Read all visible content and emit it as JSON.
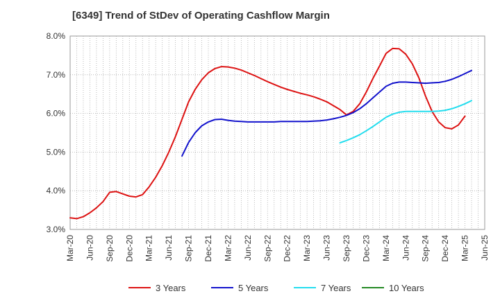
{
  "chart_data": {
    "type": "line",
    "title": "[6349]  Trend of StDev of Operating Cashflow Margin",
    "xlabel": "",
    "ylabel": "",
    "ylim": [
      3.0,
      8.0
    ],
    "y_ticks": [
      "3.0%",
      "4.0%",
      "5.0%",
      "6.0%",
      "7.0%",
      "8.0%"
    ],
    "x_ticks": [
      "Mar-20",
      "Jun-20",
      "Sep-20",
      "Dec-20",
      "Mar-21",
      "Jun-21",
      "Sep-21",
      "Dec-21",
      "Mar-22",
      "Jun-22",
      "Sep-22",
      "Dec-22",
      "Mar-23",
      "Jun-23",
      "Sep-23",
      "Dec-23",
      "Mar-24",
      "Jun-24",
      "Sep-24",
      "Dec-24",
      "Mar-25",
      "Jun-25"
    ],
    "grid": true,
    "legend_position": "bottom",
    "series": [
      {
        "name": "3 Years",
        "color": "#dd1111",
        "points": [
          [
            "Mar-20",
            3.3
          ],
          [
            "Apr-20",
            3.28
          ],
          [
            "May-20",
            3.33
          ],
          [
            "Jun-20",
            3.43
          ],
          [
            "Jul-20",
            3.56
          ],
          [
            "Aug-20",
            3.72
          ],
          [
            "Sep-20",
            3.96
          ],
          [
            "Oct-20",
            3.98
          ],
          [
            "Nov-20",
            3.92
          ],
          [
            "Dec-20",
            3.86
          ],
          [
            "Jan-21",
            3.84
          ],
          [
            "Feb-21",
            3.9
          ],
          [
            "Mar-21",
            4.1
          ],
          [
            "Apr-21",
            4.35
          ],
          [
            "May-21",
            4.65
          ],
          [
            "Jun-21",
            5.0
          ],
          [
            "Jul-21",
            5.4
          ],
          [
            "Aug-21",
            5.85
          ],
          [
            "Sep-21",
            6.3
          ],
          [
            "Oct-21",
            6.62
          ],
          [
            "Nov-21",
            6.87
          ],
          [
            "Dec-21",
            7.05
          ],
          [
            "Jan-22",
            7.16
          ],
          [
            "Feb-22",
            7.21
          ],
          [
            "Mar-22",
            7.2
          ],
          [
            "Apr-22",
            7.17
          ],
          [
            "May-22",
            7.12
          ],
          [
            "Jun-22",
            7.05
          ],
          [
            "Jul-22",
            6.98
          ],
          [
            "Aug-22",
            6.9
          ],
          [
            "Sep-22",
            6.82
          ],
          [
            "Oct-22",
            6.75
          ],
          [
            "Nov-22",
            6.68
          ],
          [
            "Dec-22",
            6.62
          ],
          [
            "Jan-23",
            6.57
          ],
          [
            "Feb-23",
            6.52
          ],
          [
            "Mar-23",
            6.48
          ],
          [
            "Apr-23",
            6.43
          ],
          [
            "May-23",
            6.37
          ],
          [
            "Jun-23",
            6.3
          ],
          [
            "Jul-23",
            6.2
          ],
          [
            "Aug-23",
            6.1
          ],
          [
            "Sep-23",
            5.96
          ],
          [
            "Oct-23",
            6.05
          ],
          [
            "Nov-23",
            6.25
          ],
          [
            "Dec-23",
            6.55
          ],
          [
            "Jan-24",
            6.9
          ],
          [
            "Feb-24",
            7.22
          ],
          [
            "Mar-24",
            7.55
          ],
          [
            "Apr-24",
            7.68
          ],
          [
            "May-24",
            7.67
          ],
          [
            "Jun-24",
            7.53
          ],
          [
            "Jul-24",
            7.28
          ],
          [
            "Aug-24",
            6.92
          ],
          [
            "Sep-24",
            6.45
          ],
          [
            "Oct-24",
            6.05
          ],
          [
            "Nov-24",
            5.78
          ],
          [
            "Dec-24",
            5.63
          ],
          [
            "Jan-25",
            5.6
          ],
          [
            "Feb-25",
            5.7
          ],
          [
            "Mar-25",
            5.93
          ]
        ]
      },
      {
        "name": "5 Years",
        "color": "#1111cc",
        "points": [
          [
            "Aug-21",
            4.9
          ],
          [
            "Sep-21",
            5.25
          ],
          [
            "Oct-21",
            5.5
          ],
          [
            "Nov-21",
            5.68
          ],
          [
            "Dec-21",
            5.78
          ],
          [
            "Jan-22",
            5.84
          ],
          [
            "Feb-22",
            5.85
          ],
          [
            "Mar-22",
            5.82
          ],
          [
            "Apr-22",
            5.8
          ],
          [
            "May-22",
            5.79
          ],
          [
            "Jun-22",
            5.78
          ],
          [
            "Jul-22",
            5.78
          ],
          [
            "Aug-22",
            5.78
          ],
          [
            "Sep-22",
            5.78
          ],
          [
            "Oct-22",
            5.78
          ],
          [
            "Nov-22",
            5.79
          ],
          [
            "Dec-22",
            5.79
          ],
          [
            "Jan-23",
            5.79
          ],
          [
            "Feb-23",
            5.79
          ],
          [
            "Mar-23",
            5.79
          ],
          [
            "Apr-23",
            5.8
          ],
          [
            "May-23",
            5.81
          ],
          [
            "Jun-23",
            5.83
          ],
          [
            "Jul-23",
            5.86
          ],
          [
            "Aug-23",
            5.9
          ],
          [
            "Sep-23",
            5.95
          ],
          [
            "Oct-23",
            6.02
          ],
          [
            "Nov-23",
            6.12
          ],
          [
            "Dec-23",
            6.25
          ],
          [
            "Jan-24",
            6.4
          ],
          [
            "Feb-24",
            6.55
          ],
          [
            "Mar-24",
            6.7
          ],
          [
            "Apr-24",
            6.78
          ],
          [
            "May-24",
            6.81
          ],
          [
            "Jun-24",
            6.81
          ],
          [
            "Jul-24",
            6.8
          ],
          [
            "Aug-24",
            6.79
          ],
          [
            "Sep-24",
            6.78
          ],
          [
            "Oct-24",
            6.79
          ],
          [
            "Nov-24",
            6.8
          ],
          [
            "Dec-24",
            6.83
          ],
          [
            "Jan-25",
            6.88
          ],
          [
            "Feb-25",
            6.95
          ],
          [
            "Mar-25",
            7.03
          ],
          [
            "Apr-25",
            7.11
          ]
        ]
      },
      {
        "name": "7 Years",
        "color": "#22ddee",
        "points": [
          [
            "Aug-23",
            5.24
          ],
          [
            "Sep-23",
            5.3
          ],
          [
            "Oct-23",
            5.37
          ],
          [
            "Nov-23",
            5.45
          ],
          [
            "Dec-23",
            5.55
          ],
          [
            "Jan-24",
            5.66
          ],
          [
            "Feb-24",
            5.78
          ],
          [
            "Mar-24",
            5.9
          ],
          [
            "Apr-24",
            5.98
          ],
          [
            "May-24",
            6.03
          ],
          [
            "Jun-24",
            6.05
          ],
          [
            "Jul-24",
            6.05
          ],
          [
            "Aug-24",
            6.05
          ],
          [
            "Sep-24",
            6.05
          ],
          [
            "Oct-24",
            6.05
          ],
          [
            "Nov-24",
            6.06
          ],
          [
            "Dec-24",
            6.08
          ],
          [
            "Jan-25",
            6.12
          ],
          [
            "Feb-25",
            6.18
          ],
          [
            "Mar-25",
            6.25
          ],
          [
            "Apr-25",
            6.33
          ]
        ]
      },
      {
        "name": "10 Years",
        "color": "#228822",
        "points": []
      }
    ]
  }
}
